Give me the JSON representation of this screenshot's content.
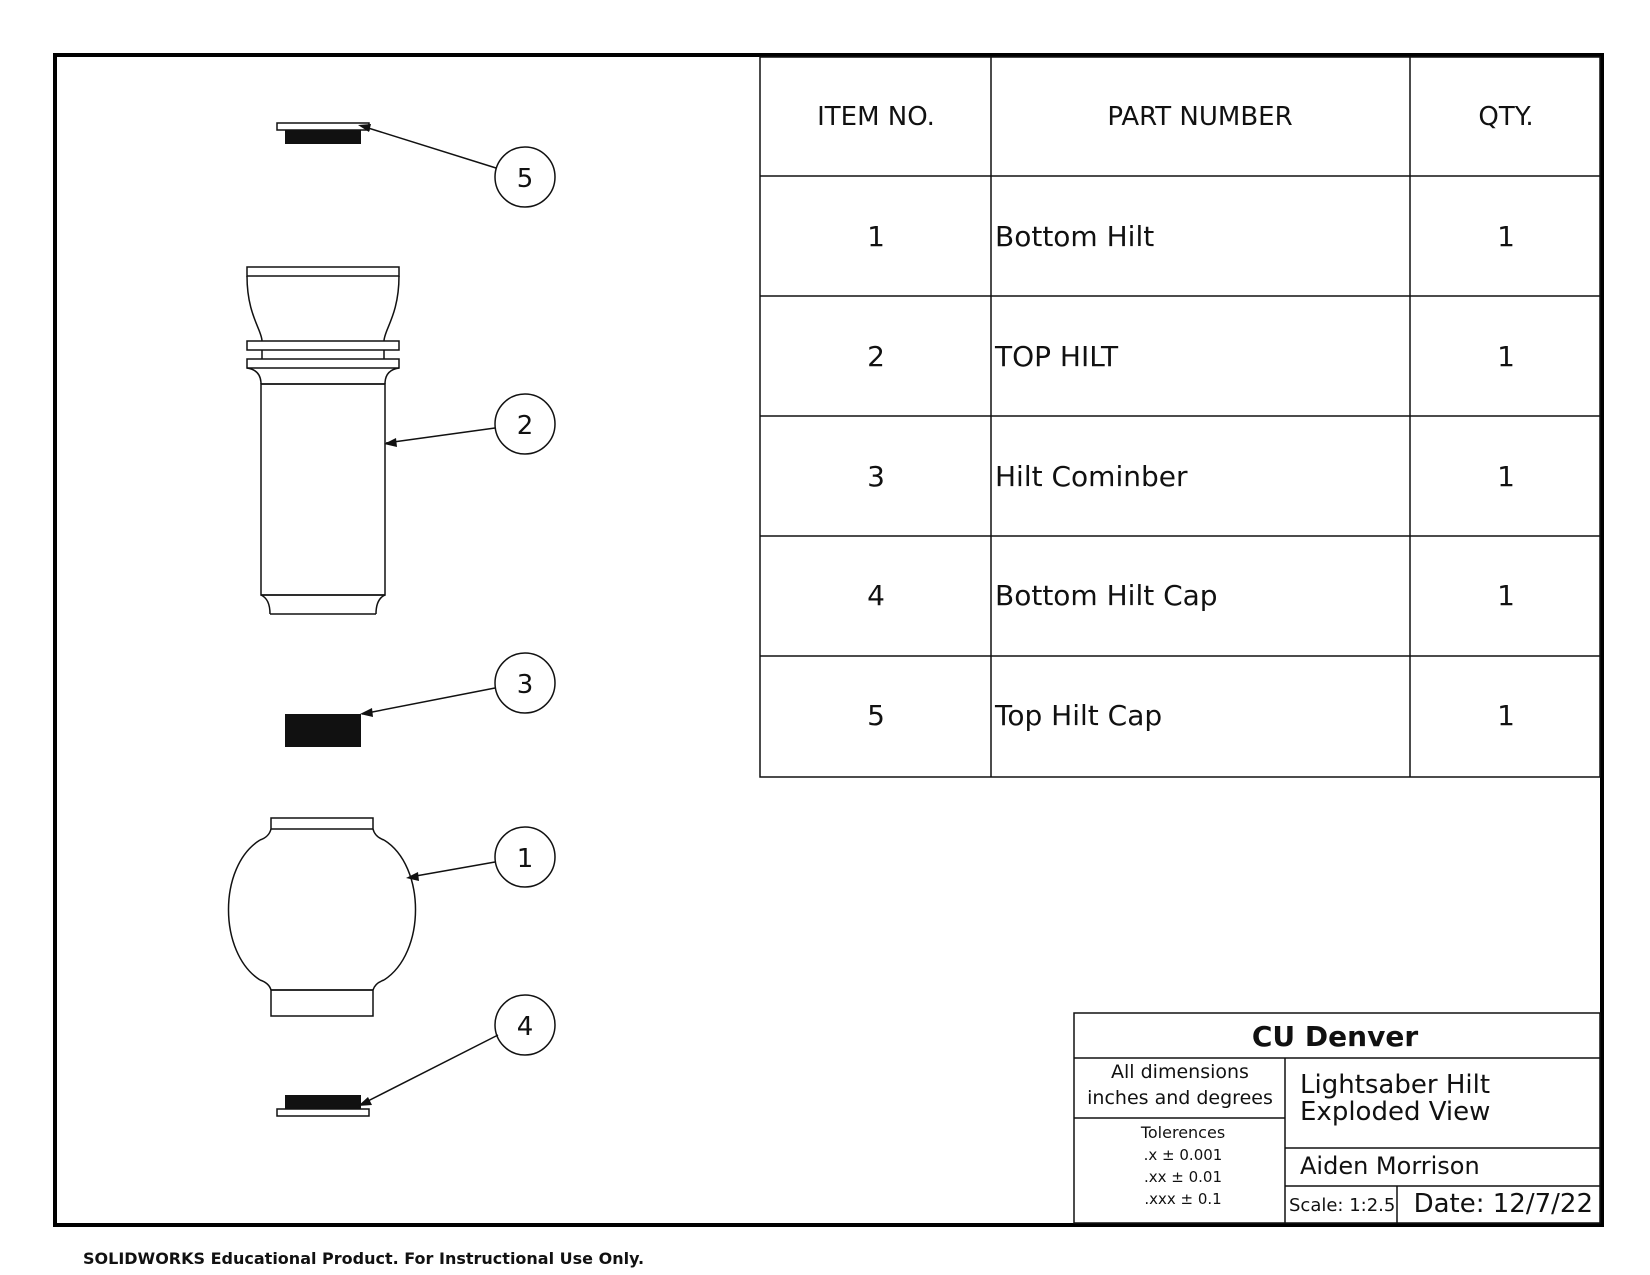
{
  "bom": {
    "headers": {
      "item_no": "ITEM NO.",
      "part_number": "PART NUMBER",
      "qty": "QTY."
    },
    "rows": [
      {
        "item": "1",
        "part": "Bottom Hilt",
        "qty": "1"
      },
      {
        "item": "2",
        "part": "TOP HILT",
        "qty": "1"
      },
      {
        "item": "3",
        "part": "Hilt Cominber",
        "qty": "1"
      },
      {
        "item": "4",
        "part": "Bottom Hilt Cap",
        "qty": "1"
      },
      {
        "item": "5",
        "part": "Top Hilt Cap",
        "qty": "1"
      }
    ]
  },
  "balloons": {
    "b5": "5",
    "b2": "2",
    "b3": "3",
    "b1": "1",
    "b4": "4"
  },
  "title_block": {
    "organization": "CU Denver",
    "dimensions_line1": "All dimensions",
    "dimensions_line2": "inches and degrees",
    "tolerances_label": "Tolerences",
    "tol_1": ".x ± 0.001",
    "tol_2": ".xx ± 0.01",
    "tol_3": ".xxx ± 0.1",
    "title_line1": "Lightsaber Hilt",
    "title_line2": "Exploded View",
    "author": "Aiden Morrison",
    "scale": "Scale: 1:2.5",
    "date": "Date: 12/7/22"
  },
  "footer": {
    "notice": "SOLIDWORKS Educational Product. For Instructional Use Only."
  }
}
